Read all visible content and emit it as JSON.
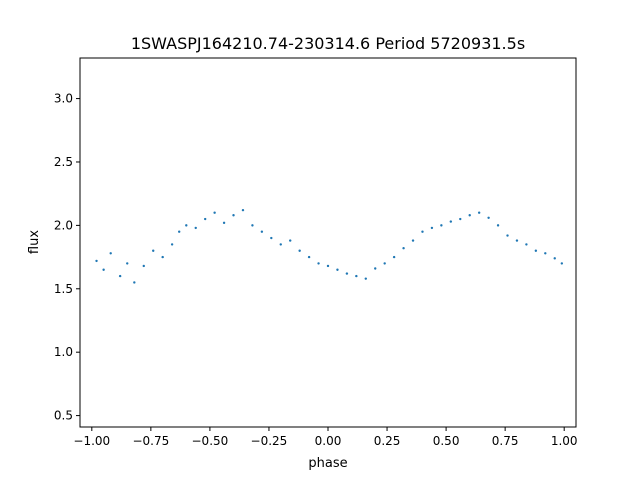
{
  "chart_data": {
    "type": "scatter",
    "title": "1SWASPJ164210.74-230314.6 Period 5720931.5s",
    "xlabel": "phase",
    "ylabel": "flux",
    "xlim": [
      -1.05,
      1.05
    ],
    "ylim": [
      0.41,
      3.32
    ],
    "x_ticks": [
      -1.0,
      -0.75,
      -0.5,
      -0.25,
      0.0,
      0.25,
      0.5,
      0.75,
      1.0
    ],
    "x_tick_labels": [
      "−1.00",
      "−0.75",
      "−0.50",
      "−0.25",
      "0.00",
      "0.25",
      "0.50",
      "0.75",
      "1.00"
    ],
    "y_ticks": [
      0.5,
      1.0,
      1.5,
      2.0,
      2.5,
      3.0
    ],
    "y_tick_labels": [
      "0.5",
      "1.0",
      "1.5",
      "2.0",
      "2.5",
      "3.0"
    ],
    "grid": false,
    "legend": "none",
    "point_color": "#1f77b4",
    "series": [
      {
        "points_phase_flux": [
          [
            -0.98,
            1.72
          ],
          [
            -0.95,
            1.65
          ],
          [
            -0.92,
            1.78
          ],
          [
            -0.88,
            1.6
          ],
          [
            -0.85,
            1.7
          ],
          [
            -0.82,
            1.55
          ],
          [
            -0.78,
            1.68
          ],
          [
            -0.74,
            1.8
          ],
          [
            -0.7,
            1.75
          ],
          [
            -0.66,
            1.85
          ],
          [
            -0.63,
            1.95
          ],
          [
            -0.6,
            2.0
          ],
          [
            -0.56,
            1.98
          ],
          [
            -0.52,
            2.05
          ],
          [
            -0.48,
            2.1
          ],
          [
            -0.44,
            2.02
          ],
          [
            -0.4,
            2.08
          ],
          [
            -0.36,
            2.12
          ],
          [
            -0.32,
            2.0
          ],
          [
            -0.28,
            1.95
          ],
          [
            -0.24,
            1.9
          ],
          [
            -0.2,
            1.85
          ],
          [
            -0.16,
            1.88
          ],
          [
            -0.12,
            1.8
          ],
          [
            -0.08,
            1.75
          ],
          [
            -0.04,
            1.7
          ],
          [
            0.0,
            1.68
          ],
          [
            0.04,
            1.65
          ],
          [
            0.08,
            1.62
          ],
          [
            0.12,
            1.6
          ],
          [
            0.16,
            1.58
          ],
          [
            0.2,
            1.66
          ],
          [
            0.24,
            1.7
          ],
          [
            0.28,
            1.75
          ],
          [
            0.32,
            1.82
          ],
          [
            0.36,
            1.88
          ],
          [
            0.4,
            1.95
          ],
          [
            0.44,
            1.98
          ],
          [
            0.48,
            2.0
          ],
          [
            0.52,
            2.03
          ],
          [
            0.56,
            2.05
          ],
          [
            0.6,
            2.08
          ],
          [
            0.64,
            2.1
          ],
          [
            0.68,
            2.06
          ],
          [
            0.72,
            2.0
          ],
          [
            0.76,
            1.92
          ],
          [
            0.8,
            1.88
          ],
          [
            0.84,
            1.85
          ],
          [
            0.88,
            1.8
          ],
          [
            0.92,
            1.78
          ],
          [
            0.96,
            1.74
          ],
          [
            0.99,
            1.7
          ]
        ]
      }
    ]
  }
}
